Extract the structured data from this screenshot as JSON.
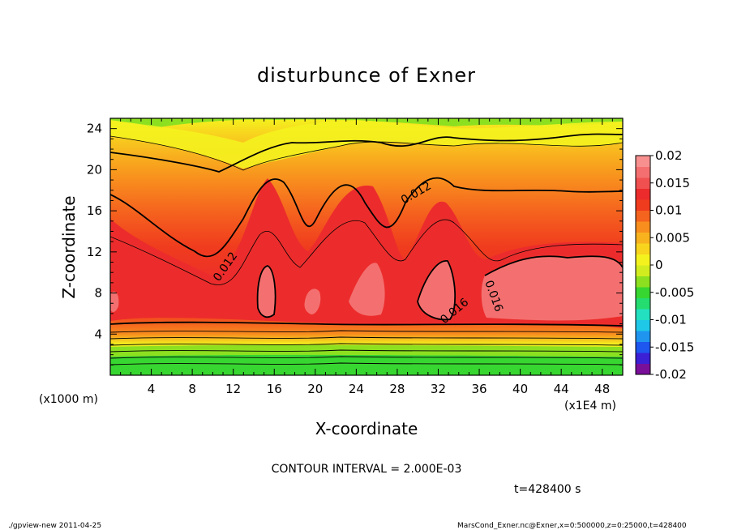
{
  "chart_data": {
    "type": "heatmap",
    "title": "disturbunce of Exner",
    "xlabel": "X-coordinate",
    "ylabel": "Z-coordinate",
    "x_unit": "(x1E4 m)",
    "y_unit": "(x1000 m)",
    "x_ticks": [
      4,
      8,
      12,
      16,
      20,
      24,
      28,
      32,
      36,
      40,
      44,
      48
    ],
    "y_ticks": [
      4,
      8,
      12,
      16,
      20,
      24
    ],
    "xlim": [
      0,
      50
    ],
    "ylim": [
      0,
      25
    ],
    "colorbar": {
      "ticks": [
        "0.02",
        "0.015",
        "0.01",
        "0.005",
        "0",
        "-0.005",
        "-0.01",
        "-0.015",
        "-0.02"
      ],
      "range": [
        -0.02,
        0.02
      ],
      "colors": [
        "#7a0f9a",
        "#3b20d6",
        "#1e56f0",
        "#1f95f0",
        "#20c8e8",
        "#22e0c0",
        "#25dc70",
        "#38d630",
        "#8ce020",
        "#d2ec20",
        "#f4f21e",
        "#f8d41e",
        "#f8b21e",
        "#f88e1e",
        "#f5641e",
        "#f03c1e",
        "#ec2c2c",
        "#f05050",
        "#f47070",
        "#f89090"
      ]
    },
    "contour_interval_label": "CONTOUR INTERVAL = 2.000E-03",
    "contour_labels": [
      "0.012",
      "0.012",
      "0.016",
      "0.016"
    ]
  },
  "footer": {
    "time": "t=428400 s",
    "left_note": "./gpview-new   2011-04-25",
    "right_note": "MarsCond_Exner.nc@Exner,x=0:500000,z=0:25000,t=428400"
  }
}
